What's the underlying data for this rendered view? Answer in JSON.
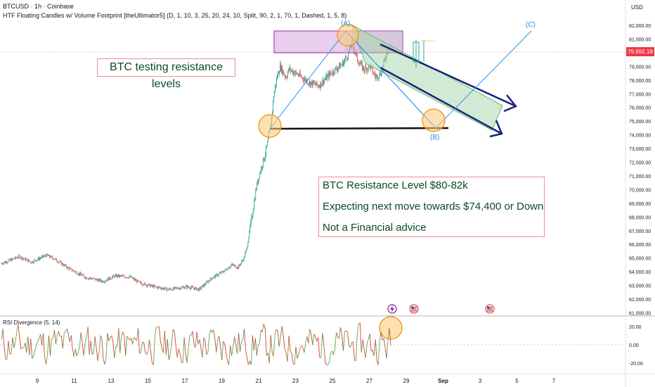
{
  "header": {
    "symbol_line": "BTCUSD · 1h · Coinbase",
    "indicator_line": "HTF Floating Candles w/ Volume Footprint [theUltimator5] (D, 1, 10, 3, 25, 20, 24, 10, Split, 90, 2, 1, 70, 1, Dashed, 1, 5, 8)"
  },
  "currency": "USD",
  "last_price_label": "79,692.18",
  "notes": {
    "title": "BTC testing resistance levels",
    "line1": "BTC Resistance Level $80-82k",
    "line2": "Expecting next move towards $74,400 or Down",
    "line3": "Not a Financial advice"
  },
  "wave_labels": {
    "a": "(A)",
    "b": "(B)",
    "c": "(C)"
  },
  "rsi": {
    "label": "RSI Divergence (5, 14)",
    "ticks": [
      "20.00",
      "0.00",
      "-20.00"
    ]
  },
  "price_ticks": [
    "82,000.00",
    "81,000.00",
    "80,000.00",
    "79,000.00",
    "78,000.00",
    "77,000.00",
    "76,000.00",
    "75,000.00",
    "74,000.00",
    "73,000.00",
    "72,000.00",
    "71,000.00",
    "70,000.00",
    "69,000.00",
    "68,000.00",
    "67,000.00",
    "66,000.00",
    "65,000.00",
    "64,000.00",
    "63,000.00",
    "62,000.00",
    "61,000.00"
  ],
  "date_ticks": [
    "9",
    "11",
    "13",
    "15",
    "17",
    "19",
    "21",
    "23",
    "25",
    "27",
    "29",
    "Sep",
    "3",
    "5",
    "7"
  ],
  "colors": {
    "up": "#26a69a",
    "down": "#ef5350",
    "rsi_up": "#4caf50",
    "rsi_down": "#e53935",
    "zone": "#ce93d8",
    "trend": "#1a237e",
    "wave": "#2196f3",
    "channel": "#a5d6a7"
  },
  "icons": [
    "lightning-event-icon",
    "us-flag-event-icon",
    "us-flag-event-icon"
  ],
  "chart_data": {
    "type": "candlestick",
    "title": "",
    "ylabel": "USD",
    "ylim": [
      60500,
      82500
    ],
    "x_labels": [
      "9",
      "11",
      "13",
      "15",
      "17",
      "19",
      "21",
      "23",
      "25",
      "27",
      "29",
      "Sep",
      "3",
      "5",
      "7"
    ],
    "price_path": [
      [
        0,
        64600
      ],
      [
        6,
        65100
      ],
      [
        10,
        64700
      ],
      [
        15,
        65200
      ],
      [
        18,
        64900
      ],
      [
        22,
        64300
      ],
      [
        28,
        63600
      ],
      [
        34,
        63300
      ],
      [
        38,
        63700
      ],
      [
        43,
        63600
      ],
      [
        46,
        63200
      ],
      [
        51,
        62900
      ],
      [
        56,
        62700
      ],
      [
        62,
        62900
      ],
      [
        66,
        62700
      ],
      [
        70,
        63500
      ],
      [
        74,
        64000
      ],
      [
        77,
        64500
      ],
      [
        79,
        64300
      ],
      [
        81,
        65000
      ],
      [
        82,
        65800
      ],
      [
        84,
        68500
      ],
      [
        85,
        70000
      ],
      [
        86,
        71000
      ],
      [
        88,
        72500
      ],
      [
        89,
        73500
      ],
      [
        90,
        74800
      ],
      [
        91,
        77000
      ],
      [
        92,
        78200
      ],
      [
        93,
        79000
      ],
      [
        95,
        78200
      ],
      [
        96,
        78800
      ],
      [
        99,
        78400
      ],
      [
        103,
        77800
      ],
      [
        106,
        77600
      ],
      [
        110,
        78500
      ],
      [
        114,
        79200
      ],
      [
        116,
        80000
      ],
      [
        117,
        80800
      ],
      [
        119,
        79400
      ],
      [
        121,
        78800
      ],
      [
        123,
        79000
      ],
      [
        125,
        78200
      ],
      [
        127,
        78600
      ],
      [
        128,
        79500
      ],
      [
        129,
        80300
      ],
      [
        130,
        80500
      ]
    ],
    "resistance_zone": [
      80000,
      81300
    ],
    "support_level": 74300,
    "annotations": [
      "BTC testing resistance levels",
      "BTC Resistance Level $80-82k",
      "Expecting next move towards $74,400 or Down",
      "Not a Financial advice"
    ],
    "rsi_ylim": [
      -27,
      27
    ]
  }
}
